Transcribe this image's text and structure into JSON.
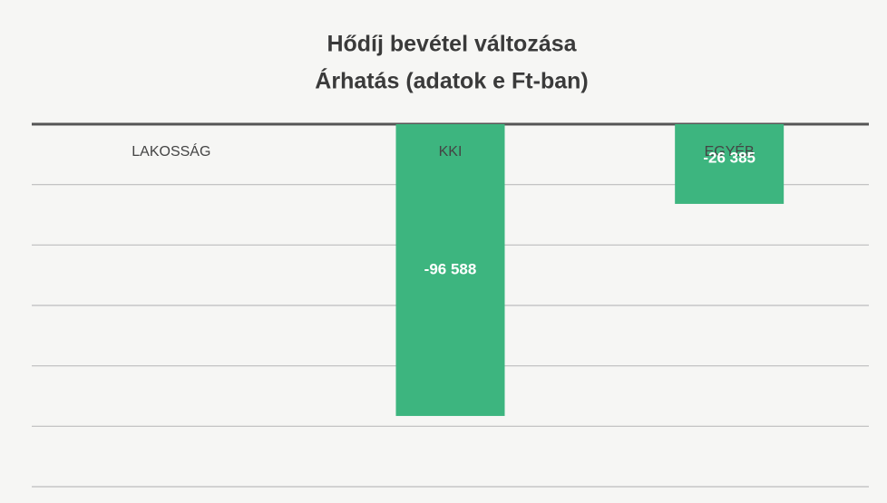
{
  "chart_data": {
    "type": "bar",
    "title": [
      "Hődíj bevétel változása",
      "Árhatás (adatok e Ft-ban)"
    ],
    "categories": [
      "LAKOSSÁG",
      "KKI",
      "EGYÉB"
    ],
    "values": [
      0,
      -96588,
      -26385
    ],
    "value_labels": [
      null,
      "-96 588",
      "-26 385"
    ],
    "color": "#3db57f",
    "ylim": [
      -120000,
      0
    ],
    "yticks": [
      -120000,
      -100000,
      -80000,
      -60000,
      -40000,
      -20000,
      0
    ],
    "tick_labels": false,
    "grid": true
  }
}
